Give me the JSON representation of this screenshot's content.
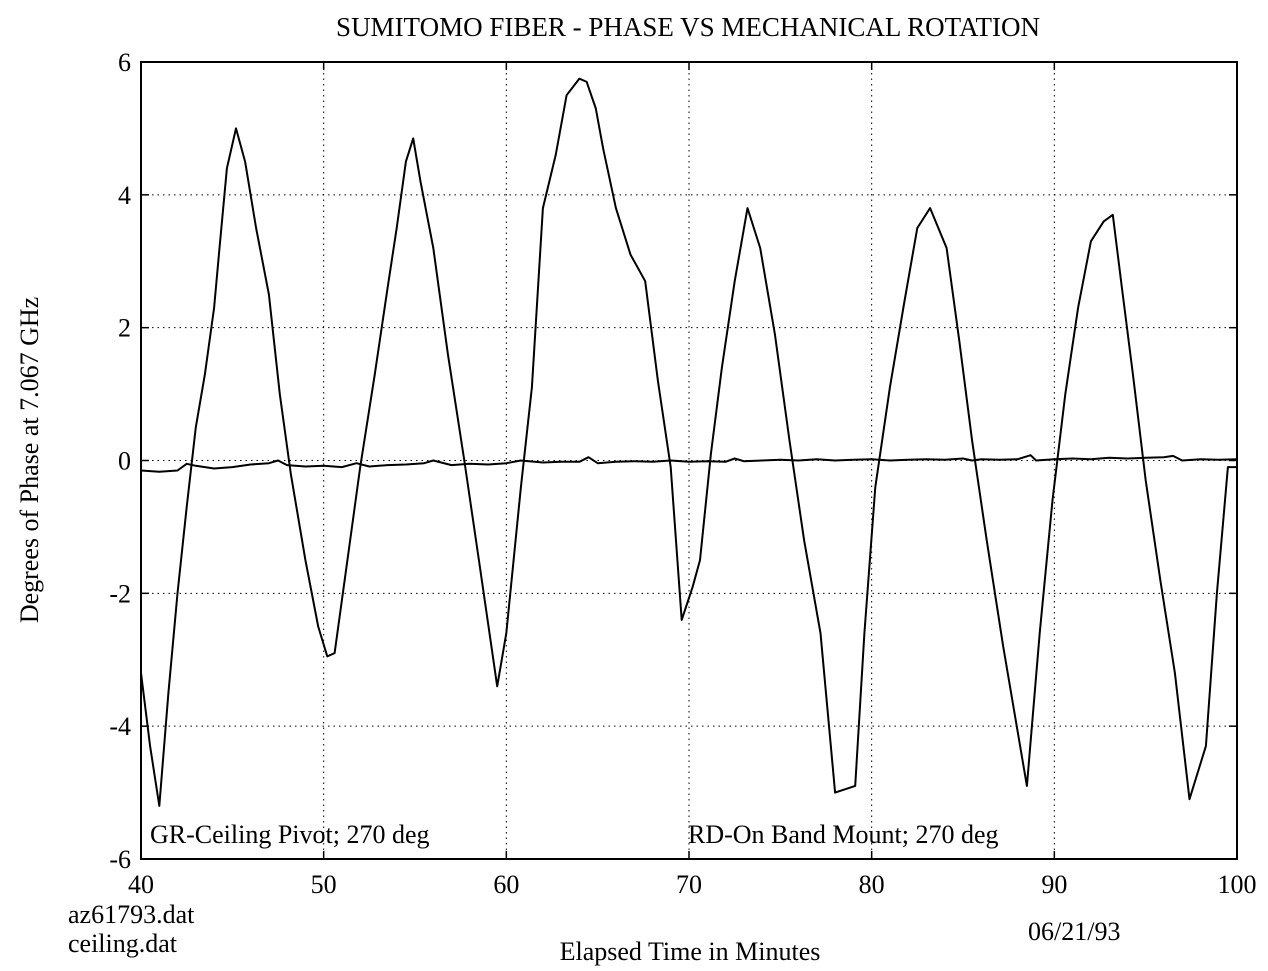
{
  "chart_data": {
    "type": "line",
    "title": "SUMITOMO FIBER - PHASE VS MECHANICAL ROTATION",
    "xlabel": "Elapsed Time in Minutes",
    "ylabel": "Degrees of Phase at 7.067 GHz",
    "xlim": [
      40,
      100
    ],
    "ylim": [
      -6,
      6
    ],
    "xticks": [
      40,
      50,
      60,
      70,
      80,
      90,
      100
    ],
    "yticks": [
      -6,
      -4,
      -2,
      0,
      2,
      4,
      6
    ],
    "grid": true,
    "annotations": {
      "left": "GR-Ceiling Pivot; 270 deg",
      "right": "RD-On Band Mount; 270 deg"
    },
    "footer": {
      "file1": "az61793.dat",
      "file2": "ceiling.dat",
      "date": "06/21/93"
    },
    "series": [
      {
        "x": [
          40,
          40.5,
          41,
          41.5,
          42,
          42.5,
          43,
          43.5,
          44,
          44.3,
          44.7,
          45.2,
          45.7,
          46.3,
          47,
          47.6,
          48.2,
          49,
          49.7,
          50.2,
          50.6,
          51.2,
          52,
          52.8,
          53.5,
          54,
          54.5,
          54.9,
          55.3,
          56,
          56.8,
          57.7,
          58.5,
          59.5,
          60,
          60.8,
          61.4,
          62,
          62.7,
          63.3,
          64,
          64.4,
          64.9,
          65.3,
          66,
          66.8,
          67.6,
          68.3,
          69,
          69.6,
          70.2,
          70.6,
          71.2,
          71.8,
          72.5,
          73.2,
          73.9,
          74.7,
          75.5,
          76.3,
          77.2,
          78,
          79.1,
          79.6,
          80.2,
          81,
          81.8,
          82.5,
          83.2,
          84.1,
          84.8,
          85.5,
          86.3,
          87.2,
          88.5,
          89.2,
          89.9,
          90.6,
          91.3,
          92,
          92.7,
          93.2,
          93.7,
          94.3,
          95,
          95.8,
          96.6,
          97.4,
          98.3,
          98.9,
          99.5,
          100
        ],
        "values": [
          -3.2,
          -4.3,
          -5.2,
          -3.5,
          -2.0,
          -0.7,
          0.5,
          1.3,
          2.3,
          3.2,
          4.4,
          5.0,
          4.5,
          3.5,
          2.5,
          1.0,
          -0.2,
          -1.5,
          -2.5,
          -2.95,
          -2.9,
          -1.7,
          -0.1,
          1.3,
          2.6,
          3.5,
          4.5,
          4.85,
          4.2,
          3.2,
          1.6,
          0.0,
          -1.5,
          -3.4,
          -2.6,
          -0.4,
          1.1,
          3.8,
          4.6,
          5.5,
          5.75,
          5.7,
          5.3,
          4.7,
          3.8,
          3.1,
          2.7,
          1.2,
          -0.1,
          -2.4,
          -1.9,
          -1.5,
          0.1,
          1.4,
          2.7,
          3.8,
          3.2,
          1.9,
          0.3,
          -1.2,
          -2.6,
          -5.0,
          -4.9,
          -2.6,
          -0.4,
          1.1,
          2.4,
          3.5,
          3.8,
          3.2,
          1.8,
          0.3,
          -1.2,
          -2.8,
          -4.9,
          -2.6,
          -0.6,
          1.0,
          2.3,
          3.3,
          3.6,
          3.7,
          2.6,
          1.3,
          -0.3,
          -1.8,
          -3.2,
          -5.1,
          -4.3,
          -2.0,
          -0.1,
          -0.1
        ]
      },
      {
        "x": [
          40,
          41,
          42,
          42.5,
          43,
          44,
          45,
          46,
          47,
          47.5,
          48,
          49,
          50,
          51,
          51.8,
          52.5,
          53.5,
          54.5,
          55.5,
          56,
          57,
          58,
          59,
          60,
          60.8,
          62,
          63,
          64,
          64.5,
          65,
          66,
          67,
          68,
          69,
          70,
          71,
          72,
          72.5,
          73,
          74,
          75,
          76,
          77,
          78,
          79,
          80,
          81,
          82,
          83,
          84,
          85,
          85.5,
          86,
          87,
          88,
          88.7,
          89,
          90,
          91,
          92,
          93,
          94,
          95,
          96,
          96.5,
          97,
          98,
          99,
          100
        ],
        "values": [
          -0.15,
          -0.17,
          -0.15,
          -0.05,
          -0.08,
          -0.12,
          -0.1,
          -0.06,
          -0.04,
          0.0,
          -0.07,
          -0.09,
          -0.08,
          -0.1,
          -0.04,
          -0.09,
          -0.07,
          -0.06,
          -0.04,
          0.0,
          -0.07,
          -0.05,
          -0.06,
          -0.04,
          0.0,
          -0.03,
          -0.02,
          -0.02,
          0.05,
          -0.04,
          -0.02,
          -0.01,
          -0.02,
          0.0,
          -0.02,
          -0.01,
          -0.02,
          0.03,
          -0.01,
          0.0,
          0.01,
          0.0,
          0.02,
          0.0,
          0.01,
          0.02,
          0.0,
          0.01,
          0.02,
          0.01,
          0.03,
          0.0,
          0.02,
          0.01,
          0.02,
          0.08,
          0.0,
          0.02,
          0.03,
          0.02,
          0.04,
          0.03,
          0.04,
          0.05,
          0.07,
          0.0,
          0.02,
          0.01,
          0.02
        ]
      }
    ]
  }
}
